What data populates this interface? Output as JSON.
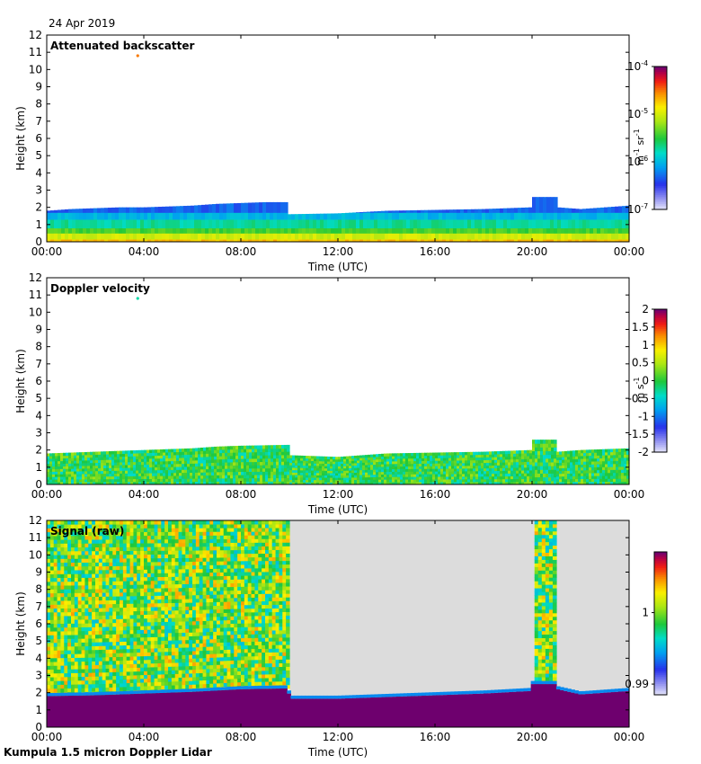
{
  "date_label": "24 Apr 2019",
  "footer_label": "Kumpula 1.5 micron Doppler Lidar",
  "chart_data": [
    {
      "type": "heatmap",
      "title": "Attenuated backscatter",
      "xlabel": "Time (UTC)",
      "ylabel": "Height (km)",
      "x_ticks": [
        "00:00",
        "04:00",
        "08:00",
        "12:00",
        "16:00",
        "20:00",
        "00:00"
      ],
      "x_tick_hours": [
        0,
        4,
        8,
        12,
        16,
        20,
        24
      ],
      "y_ticks": [
        0,
        1,
        2,
        3,
        4,
        5,
        6,
        7,
        8,
        9,
        10,
        11,
        12
      ],
      "ylim": [
        0,
        12
      ],
      "xlim_hours": [
        0,
        24
      ],
      "colorbar": {
        "scale": "log",
        "ticks": [
          {
            "value": -4,
            "base": "10",
            "exp": "-4"
          },
          {
            "value": -5,
            "base": "10",
            "exp": "-5"
          },
          {
            "value": -6,
            "base": "10",
            "exp": "-6"
          },
          {
            "value": -7,
            "base": "10",
            "exp": "-7"
          }
        ],
        "range": [
          -7,
          -4
        ],
        "unit_parts": [
          "m",
          "-1",
          " sr",
          "-1"
        ]
      },
      "layer_top_km": [
        {
          "t": 0,
          "h": 1.8
        },
        {
          "t": 1,
          "h": 1.9
        },
        {
          "t": 2,
          "h": 1.95
        },
        {
          "t": 3,
          "h": 2.0
        },
        {
          "t": 4,
          "h": 2.0
        },
        {
          "t": 5,
          "h": 2.05
        },
        {
          "t": 6,
          "h": 2.1
        },
        {
          "t": 7,
          "h": 2.2
        },
        {
          "t": 8,
          "h": 2.25
        },
        {
          "t": 9,
          "h": 2.3
        },
        {
          "t": 9.95,
          "h": 2.3
        },
        {
          "t": 10.0,
          "h": 1.6
        },
        {
          "t": 12,
          "h": 1.65
        },
        {
          "t": 14,
          "h": 1.8
        },
        {
          "t": 16,
          "h": 1.85
        },
        {
          "t": 18,
          "h": 1.9
        },
        {
          "t": 19.95,
          "h": 2.0
        },
        {
          "t": 20.0,
          "h": 2.6
        },
        {
          "t": 21.0,
          "h": 2.6
        },
        {
          "t": 21.05,
          "h": 2.0
        },
        {
          "t": 22,
          "h": 1.9
        },
        {
          "t": 24,
          "h": 2.1
        }
      ],
      "bands": [
        {
          "from_km": 0.0,
          "to_km": 0.15,
          "value": -4.7
        },
        {
          "from_km": 0.15,
          "to_km": 0.5,
          "value": -5.0
        },
        {
          "from_km": 0.5,
          "to_km": 0.8,
          "value": -5.4
        },
        {
          "from_km": 0.8,
          "to_km": 1.3,
          "value": -5.7
        },
        {
          "from_km": 1.3,
          "to_km": 1.7,
          "value": -6.0
        },
        {
          "from_km": 1.7,
          "to_km": 2.7,
          "value": -6.3
        }
      ],
      "points": [
        {
          "t": 3.75,
          "h": 10.8,
          "value": -4.5
        }
      ]
    },
    {
      "type": "heatmap",
      "title": "Doppler velocity",
      "xlabel": "Time (UTC)",
      "ylabel": "Height (km)",
      "x_ticks": [
        "00:00",
        "04:00",
        "08:00",
        "12:00",
        "16:00",
        "20:00",
        "00:00"
      ],
      "x_tick_hours": [
        0,
        4,
        8,
        12,
        16,
        20,
        24
      ],
      "y_ticks": [
        0,
        1,
        2,
        3,
        4,
        5,
        6,
        7,
        8,
        9,
        10,
        11,
        12
      ],
      "ylim": [
        0,
        12
      ],
      "xlim_hours": [
        0,
        24
      ],
      "colorbar": {
        "scale": "linear",
        "ticks": [
          "2",
          "1.5",
          "1",
          "0.5",
          "0",
          "-0.5",
          "-1",
          "-1.5",
          "-2"
        ],
        "range": [
          -2,
          2
        ],
        "unit_parts": [
          "m s",
          "-1"
        ]
      },
      "layer_top_km": [
        {
          "t": 0,
          "h": 1.8
        },
        {
          "t": 2,
          "h": 1.9
        },
        {
          "t": 4,
          "h": 2.0
        },
        {
          "t": 6,
          "h": 2.1
        },
        {
          "t": 7,
          "h": 2.2
        },
        {
          "t": 8,
          "h": 2.25
        },
        {
          "t": 9.95,
          "h": 2.3
        },
        {
          "t": 10.0,
          "h": 1.7
        },
        {
          "t": 12,
          "h": 1.6
        },
        {
          "t": 14,
          "h": 1.8
        },
        {
          "t": 16,
          "h": 1.85
        },
        {
          "t": 18,
          "h": 1.9
        },
        {
          "t": 19.95,
          "h": 2.0
        },
        {
          "t": 20.0,
          "h": 2.6
        },
        {
          "t": 21.0,
          "h": 2.6
        },
        {
          "t": 21.05,
          "h": 1.9
        },
        {
          "t": 22,
          "h": 2.0
        },
        {
          "t": 24,
          "h": 2.1
        }
      ],
      "velocity_typical": 0.0,
      "points": [
        {
          "t": 3.75,
          "h": 10.8,
          "value": -0.3
        }
      ]
    },
    {
      "type": "heatmap",
      "title": "Signal (raw)",
      "xlabel": "Time (UTC)",
      "ylabel": "Height (km)",
      "x_ticks": [
        "00:00",
        "04:00",
        "08:00",
        "12:00",
        "16:00",
        "20:00",
        "00:00"
      ],
      "x_tick_hours": [
        0,
        4,
        8,
        12,
        16,
        20,
        24
      ],
      "y_ticks": [
        0,
        1,
        2,
        3,
        4,
        5,
        6,
        7,
        8,
        9,
        10,
        11,
        12
      ],
      "ylim": [
        0,
        12
      ],
      "xlim_hours": [
        0,
        24
      ],
      "colorbar": {
        "scale": "linear",
        "ticks": [
          {
            "value": 1,
            "label": "1"
          },
          {
            "value": 0.99,
            "label": "0.99"
          }
        ],
        "range": [
          0.9885,
          1.0085
        ]
      },
      "saturated_top_km": [
        {
          "t": 0,
          "h": 1.8
        },
        {
          "t": 2,
          "h": 1.85
        },
        {
          "t": 4,
          "h": 1.95
        },
        {
          "t": 6,
          "h": 2.05
        },
        {
          "t": 8,
          "h": 2.2
        },
        {
          "t": 9.95,
          "h": 2.25
        },
        {
          "t": 10.0,
          "h": 1.65
        },
        {
          "t": 12,
          "h": 1.65
        },
        {
          "t": 14,
          "h": 1.75
        },
        {
          "t": 16,
          "h": 1.85
        },
        {
          "t": 18,
          "h": 1.95
        },
        {
          "t": 19.95,
          "h": 2.1
        },
        {
          "t": 20.0,
          "h": 2.5
        },
        {
          "t": 21.0,
          "h": 2.5
        },
        {
          "t": 21.05,
          "h": 2.2
        },
        {
          "t": 22,
          "h": 1.9
        },
        {
          "t": 24,
          "h": 2.1
        }
      ],
      "noise_segments": [
        {
          "from_hour": 0,
          "to_hour": 10
        },
        {
          "from_hour": 20.1,
          "to_hour": 21.0
        }
      ],
      "no_data_segments": [
        {
          "from_hour": 10,
          "to_hour": 20.1
        },
        {
          "from_hour": 21.0,
          "to_hour": 24
        }
      ],
      "noise_mean": 1.0,
      "saturated_value": 1.0085,
      "no_data_color": "#dcdcdc"
    }
  ]
}
